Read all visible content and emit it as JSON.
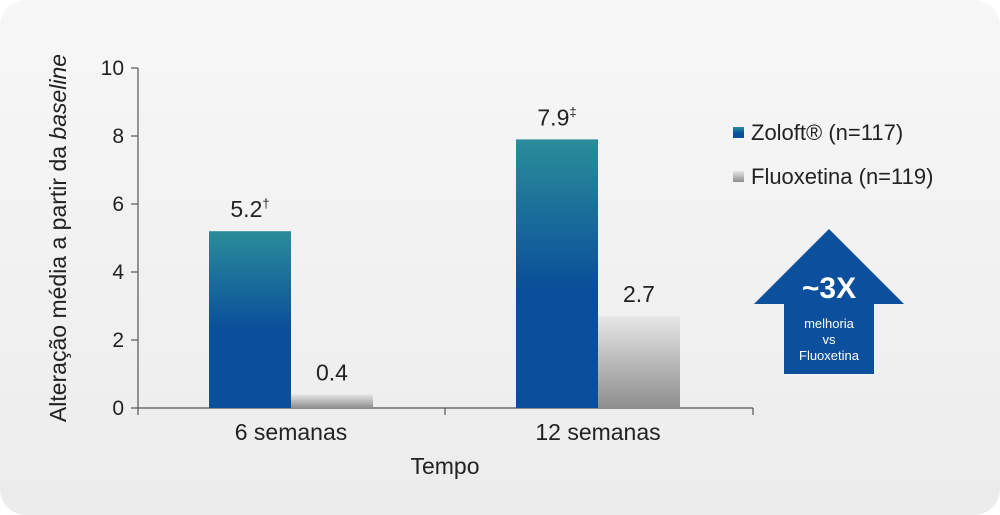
{
  "chart_data": {
    "type": "bar",
    "ylabel_prefix": "Alteração média a partir da ",
    "ylabel_italic": "baseline",
    "xlabel": "Tempo",
    "ylim": [
      0,
      10
    ],
    "yticks": [
      "0",
      "2",
      "4",
      "6",
      "8",
      "10"
    ],
    "categories": [
      "6 semanas",
      "12 semanas"
    ],
    "series": [
      {
        "name": "Zoloft® (n=117)",
        "values": [
          5.2,
          7.9
        ],
        "labels": [
          "5.2†",
          "7.9‡"
        ],
        "color_top": "#2a8d9a",
        "color_bottom": "#0a4f9a"
      },
      {
        "name": "Fluoxetina (n=119)",
        "values": [
          0.4,
          2.7
        ],
        "labels": [
          "0.4",
          "2.7"
        ],
        "color_top": "#e6e6e6",
        "color_bottom": "#8e8e8e"
      }
    ],
    "legend_position": "right",
    "grid": false
  },
  "callout": {
    "headline": "~3X",
    "line1": "melhoria",
    "line2": "vs",
    "line3": "Fluoxetina",
    "color": "#0c4f9c"
  }
}
